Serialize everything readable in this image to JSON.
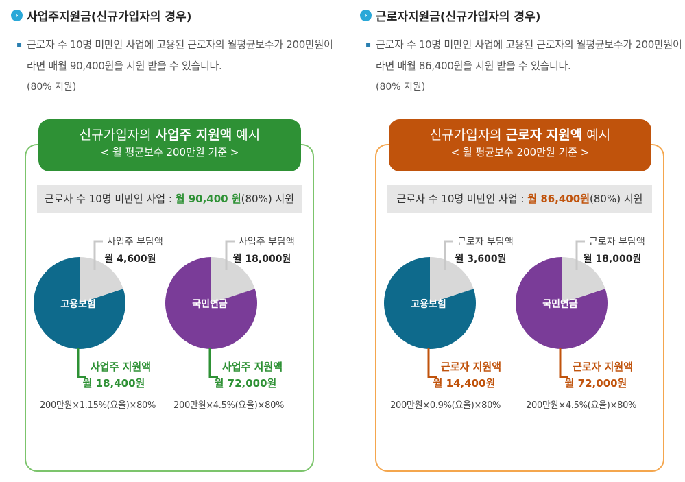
{
  "colors": {
    "employer_green": "#2e9135",
    "employer_border": "#7cc46c",
    "worker_orange": "#c0530c",
    "worker_border": "#f4a64e",
    "employment_insurance_blue": "#0e6a8c",
    "national_pension_purple": "#7a3c98",
    "burden_gray": "#d8d8d8",
    "bullet_blue": "#2aa8d8"
  },
  "left": {
    "heading": "사업주지원금(신규가입자의 경우)",
    "desc_line": "근로자 수 10명 미만인 사업에 고용된 근로자의 월평균보수가 200만원이라면 매월 90,400원을 지원 받을 수 있습니다.",
    "desc_pct": "(80% 지원)",
    "banner_prefix": "신규가입자의 ",
    "banner_bold": "사업주 지원액",
    "banner_suffix": " 예시",
    "banner_sub": "< 월 평균보수 200만원 기준 >",
    "bar_prefix": "근로자 수 10명 미만인 사업 : ",
    "bar_amount": "월 90,400 원",
    "bar_suffix": "(80%) 지원",
    "formula1": "200만원×1.15%(요율)×80%",
    "formula2": "200만원×4.5%(요율)×80%"
  },
  "right": {
    "heading": "근로자지원금(신규가입자의 경우)",
    "desc_line": "근로자 수 10명 미만인 사업에 고용된 근로자의 월평균보수가 200만원이라면 매월 86,400원을 지원 받을 수 있습니다.",
    "desc_pct": "(80% 지원)",
    "banner_prefix": "신규가입자의 ",
    "banner_bold": "근로자 지원액",
    "banner_suffix": " 예시",
    "banner_sub": "< 월 평균보수 200만원 기준 >",
    "bar_prefix": "근로자 수 10명 미만인 사업 : ",
    "bar_amount": "월 86,400원",
    "bar_suffix": "(80%) 지원",
    "formula1": "200만원×0.9%(요율)×80%",
    "formula2": "200만원×4.5%(요율)×80%"
  },
  "chart_data": [
    {
      "type": "pie",
      "panel": "left",
      "center_label": "고용보험",
      "slices": [
        {
          "label": "사업주 부담액",
          "amount_text": "월 4,600원",
          "value": 4600,
          "color": "#d8d8d8"
        },
        {
          "label": "사업주 지원액",
          "amount_text": "월 18,400원",
          "value": 18400,
          "color": "#0e6a8c"
        }
      ]
    },
    {
      "type": "pie",
      "panel": "left",
      "center_label": "국민연금",
      "slices": [
        {
          "label": "사업주 부담액",
          "amount_text": "월 18,000원",
          "value": 18000,
          "color": "#d8d8d8"
        },
        {
          "label": "사업주 지원액",
          "amount_text": "월 72,000원",
          "value": 72000,
          "color": "#7a3c98"
        }
      ]
    },
    {
      "type": "pie",
      "panel": "right",
      "center_label": "고용보험",
      "slices": [
        {
          "label": "근로자 부담액",
          "amount_text": "월 3,600원",
          "value": 3600,
          "color": "#d8d8d8"
        },
        {
          "label": "근로자 지원액",
          "amount_text": "월 14,400원",
          "value": 14400,
          "color": "#0e6a8c"
        }
      ]
    },
    {
      "type": "pie",
      "panel": "right",
      "center_label": "국민연금",
      "slices": [
        {
          "label": "근로자 부담액",
          "amount_text": "월 18,000원",
          "value": 18000,
          "color": "#d8d8d8"
        },
        {
          "label": "근로자 지원액",
          "amount_text": "월 72,000원",
          "value": 72000,
          "color": "#7a3c98"
        }
      ]
    }
  ]
}
